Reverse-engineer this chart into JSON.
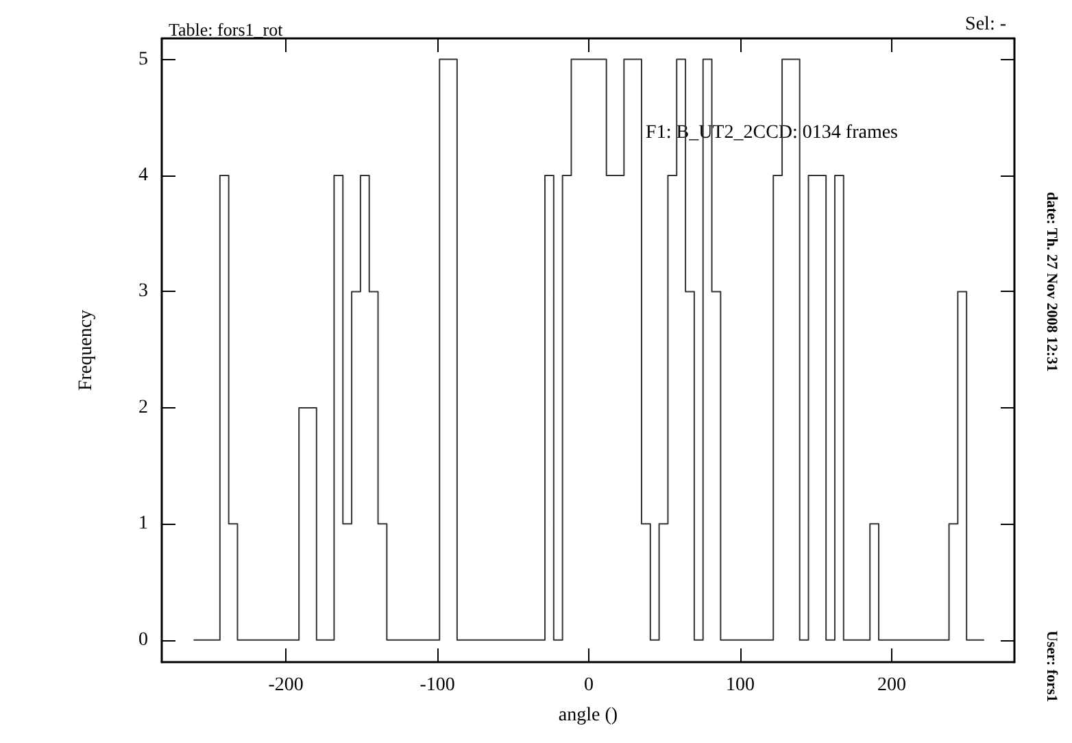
{
  "chart_data": {
    "type": "histogram",
    "title": "Table: fors1_rot",
    "xlabel": "angle ()",
    "ylabel": "Frequency",
    "annotations": [
      "F1: B_UT2_2CCD: 0134 frames",
      "Sel: -",
      "date: Th. 27 Nov 2008 12:31",
      "User: fors1"
    ],
    "bins": [
      -261,
      -255.2,
      -249.4,
      -243.6,
      -237.8,
      -232,
      -226.2,
      -220.4,
      -214.6,
      -208.8,
      -203,
      -197.2,
      -191.4,
      -185.6,
      -179.8,
      -174,
      -168.2,
      -162.4,
      -156.6,
      -150.8,
      -145,
      -139.2,
      -133.4,
      -127.6,
      -121.8,
      -116,
      -110.2,
      -104.4,
      -98.6,
      -92.8,
      -87,
      -81.2,
      -75.4,
      -69.6,
      -63.8,
      -58,
      -52.2,
      -46.4,
      -40.6,
      -34.8,
      -29,
      -23.2,
      -17.4,
      -11.6,
      -5.8,
      0,
      5.8,
      11.6,
      17.4,
      23.2,
      29,
      34.8,
      40.6,
      46.4,
      52.2,
      58,
      63.8,
      69.6,
      75.4,
      81.2,
      87,
      92.8,
      98.6,
      104.4,
      110.2,
      116,
      121.8,
      127.6,
      133.4,
      139.2,
      145,
      150.8,
      156.6,
      162.4,
      168.2,
      174,
      179.8,
      185.6,
      191.4,
      197.2,
      203,
      208.8,
      214.6,
      220.4,
      226.2,
      232,
      237.8,
      243.6,
      249.4,
      255.2,
      261
    ],
    "values": [
      0,
      0,
      0,
      4,
      1,
      0,
      0,
      0,
      0,
      0,
      0,
      0,
      2,
      2,
      0,
      0,
      4,
      1,
      3,
      4,
      3,
      1,
      0,
      0,
      0,
      0,
      0,
      0,
      5,
      5,
      0,
      0,
      0,
      0,
      0,
      0,
      0,
      0,
      0,
      0,
      4,
      0,
      4,
      5,
      5,
      5,
      5,
      4,
      4,
      5,
      5,
      1,
      0,
      1,
      4,
      5,
      3,
      0,
      5,
      3,
      0,
      0,
      0,
      0,
      0,
      0,
      4,
      5,
      5,
      0,
      4,
      4,
      0,
      4,
      0,
      0,
      0,
      1,
      0,
      0,
      0,
      0,
      0,
      0,
      0,
      0,
      1,
      3,
      0,
      0
    ],
    "color": "#333333",
    "xlim": [
      -282,
      281
    ],
    "xticks": [
      -200,
      -100,
      0,
      100,
      200
    ],
    "ylim": [
      -0.19,
      5.18
    ],
    "yticks": [
      0,
      1,
      2,
      3,
      4,
      5
    ],
    "grid": false
  }
}
